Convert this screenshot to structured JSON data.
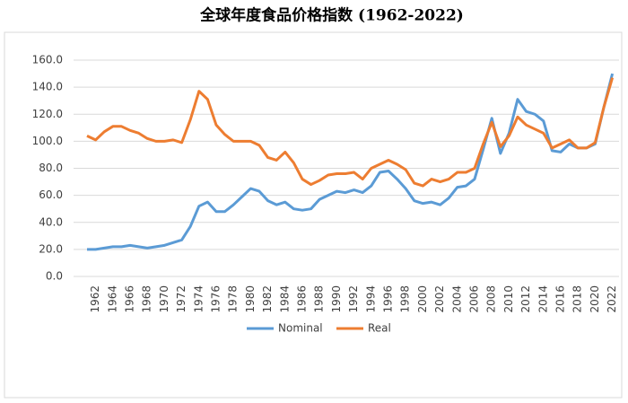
{
  "chart_data": {
    "type": "line",
    "title": "全球年度食品价格指数 (1962-2022)",
    "categories": [
      null,
      "1962",
      null,
      "1964",
      null,
      "1966",
      null,
      "1968",
      null,
      "1970",
      null,
      "1972",
      null,
      "1974",
      null,
      "1976",
      null,
      "1978",
      null,
      "1980",
      null,
      "1982",
      null,
      "1984",
      null,
      "1986",
      null,
      "1988",
      null,
      "1990",
      null,
      "1992",
      null,
      "1994",
      null,
      "1996",
      null,
      "1998",
      null,
      "2000",
      null,
      "2002",
      null,
      "2004",
      null,
      "2006",
      null,
      "2008",
      null,
      "2010",
      null,
      "2012",
      null,
      "2014",
      null,
      "2016",
      null,
      "2018",
      null,
      "2020",
      null,
      "2022"
    ],
    "series": [
      {
        "name": "Nominal",
        "color": "#5b9bd5",
        "values": [
          20,
          20,
          21,
          22,
          22,
          23,
          22,
          21,
          22,
          23,
          25,
          27,
          37,
          52,
          55,
          48,
          48,
          53,
          59,
          65,
          63,
          56,
          53,
          55,
          50,
          49,
          50,
          57,
          60,
          63,
          62,
          64,
          62,
          67,
          77,
          78,
          72,
          65,
          56,
          54,
          55,
          53,
          58,
          66,
          67,
          72,
          94,
          117,
          91,
          106,
          131,
          122,
          120,
          115,
          93,
          92,
          98,
          95,
          95,
          98,
          125,
          150
        ]
      },
      {
        "name": "Real",
        "color": "#ed7d31",
        "values": [
          104,
          101,
          107,
          111,
          111,
          108,
          106,
          102,
          100,
          100,
          101,
          99,
          116,
          137,
          131,
          112,
          105,
          100,
          100,
          100,
          97,
          88,
          86,
          92,
          84,
          72,
          68,
          71,
          75,
          76,
          76,
          77,
          72,
          80,
          83,
          86,
          83,
          79,
          69,
          67,
          72,
          70,
          72,
          77,
          77,
          80,
          98,
          114,
          96,
          104,
          118,
          112,
          109,
          106,
          95,
          98,
          101,
          95,
          95,
          99,
          125,
          147
        ]
      }
    ],
    "ylim": [
      0,
      160
    ],
    "yticks": [
      {
        "value": 0,
        "label": "0.0"
      },
      {
        "value": 20,
        "label": "20.0"
      },
      {
        "value": 40,
        "label": "40.0"
      },
      {
        "value": 60,
        "label": "60.0"
      },
      {
        "value": 80,
        "label": "80.0"
      },
      {
        "value": 100,
        "label": "100.0"
      },
      {
        "value": 120,
        "label": "120.0"
      },
      {
        "value": 140,
        "label": "140.0"
      },
      {
        "value": 160,
        "label": "160.0"
      }
    ],
    "grid": true,
    "legend": "bottom"
  }
}
